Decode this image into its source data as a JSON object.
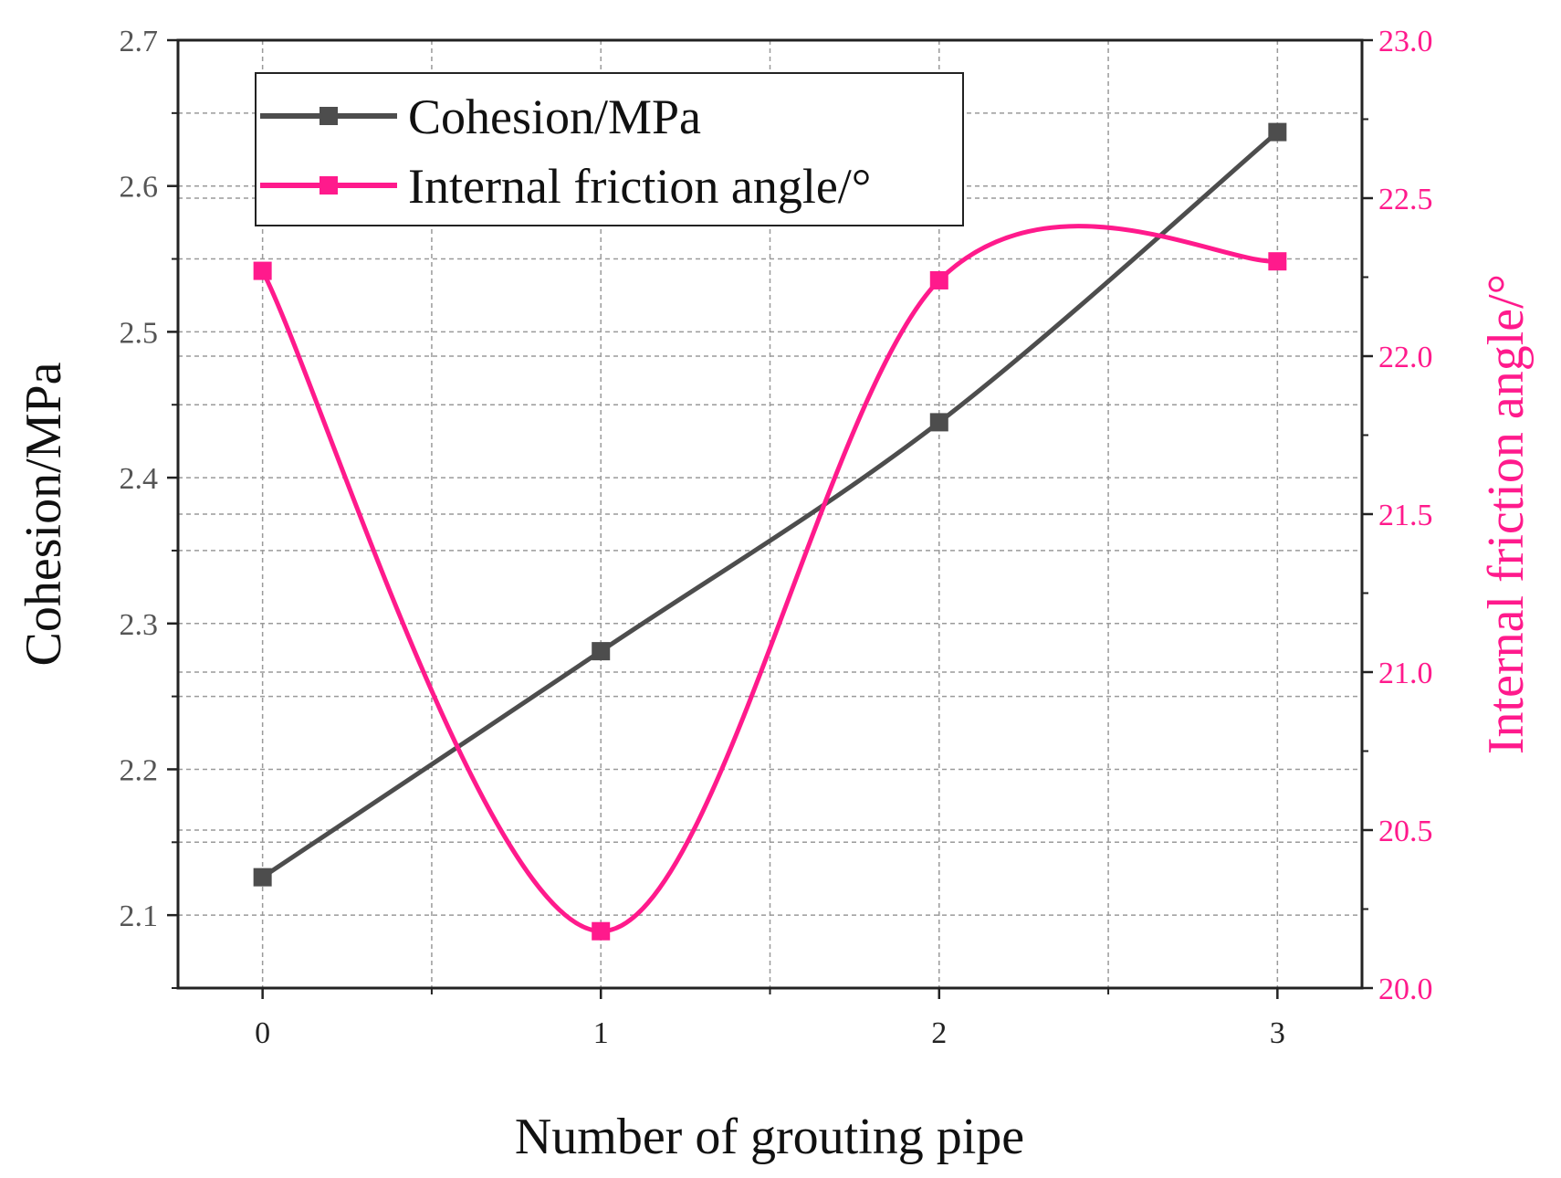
{
  "chart_data": {
    "type": "line",
    "title": "",
    "xlabel": "Number of grouting pipe",
    "ylabel": "Cohesion/MPa",
    "y2label": "Internal friction angle/°",
    "x": [
      0,
      1,
      2,
      3
    ],
    "x_tick_labels": [
      "0",
      "1",
      "2",
      "3"
    ],
    "xlim": [
      -0.25,
      3.25
    ],
    "ylim": [
      2.05,
      2.7
    ],
    "y2lim": [
      20.0,
      23.0
    ],
    "y_ticks": [
      2.1,
      2.2,
      2.3,
      2.4,
      2.5,
      2.6,
      2.7
    ],
    "y_tick_labels": [
      "2.1",
      "2.2",
      "2.3",
      "2.4",
      "2.5",
      "2.6",
      "2.7"
    ],
    "y2_ticks": [
      20.0,
      20.5,
      21.0,
      21.5,
      22.0,
      22.5,
      23.0
    ],
    "y2_tick_labels": [
      "20.0",
      "20.5",
      "21.0",
      "21.5",
      "22.0",
      "22.5",
      "23.0"
    ],
    "grid": true,
    "legend_position": "top-left",
    "series": [
      {
        "name": "Cohesion/MPa",
        "axis": "left",
        "color": "#4d4d4d",
        "marker": "square",
        "values": [
          2.126,
          2.281,
          2.438,
          2.637
        ]
      },
      {
        "name": "Internal friction angle/°",
        "axis": "right",
        "color": "#ff1a8c",
        "marker": "square",
        "values": [
          22.27,
          20.18,
          22.24,
          22.3
        ]
      }
    ]
  }
}
